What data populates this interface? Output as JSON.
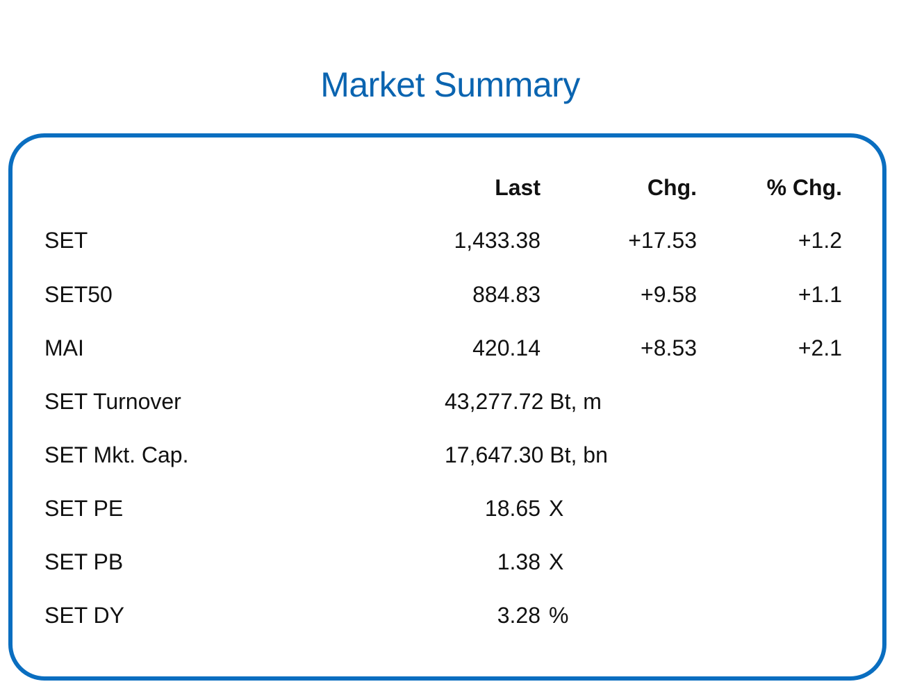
{
  "title": "Market Summary",
  "header": {
    "last": "Last",
    "chg": "Chg.",
    "pct_chg": "% Chg."
  },
  "indices": [
    {
      "name": "SET",
      "last": "1,433.38",
      "chg": "+17.53",
      "pct_chg": "+1.2"
    },
    {
      "name": "SET50",
      "last": "884.83",
      "chg": "+9.58",
      "pct_chg": "+1.1"
    },
    {
      "name": "MAI",
      "last": "420.14",
      "chg": "+8.53",
      "pct_chg": "+2.1"
    }
  ],
  "stats": [
    {
      "name": "SET Turnover",
      "value": "43,277.72 Bt, m"
    },
    {
      "name": "SET Mkt. Cap.",
      "value": "17,647.30 Bt, bn"
    },
    {
      "name": "SET PE",
      "value": "18.65",
      "unit": "X"
    },
    {
      "name": "SET PB",
      "value": "1.38",
      "unit": "X"
    },
    {
      "name": "SET DY",
      "value": "3.28",
      "unit": "%"
    }
  ],
  "colors": {
    "title": "#0a64b0",
    "border": "#0a6ec0",
    "text": "#111111"
  }
}
